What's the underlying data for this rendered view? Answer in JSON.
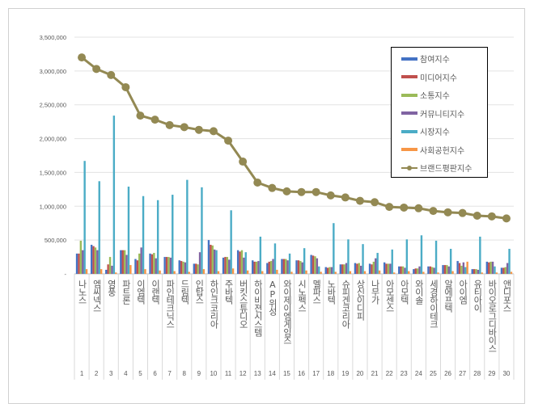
{
  "chart_data": {
    "type": "bar",
    "title": "",
    "xlabel": "",
    "ylabel": "",
    "ylim": [
      0,
      3500000
    ],
    "yticks": [
      "-",
      "500,000",
      "1,000,000",
      "1,500,000",
      "2,000,000",
      "2,500,000",
      "3,000,000",
      "3,500,000"
    ],
    "grid": true,
    "legend_position": "top-right",
    "categories": [
      "나노스",
      "엠씨넥스",
      "영풍",
      "파트론",
      "이엠텍",
      "이랜텍",
      "파인테크닉스",
      "드림텍",
      "인탑스",
      "하인크코리아",
      "주바텍",
      "버킷스튜디오",
      "하이비젼시스템",
      "AP위성",
      "와이제이엠게임즈",
      "시노펙스",
      "멜파스",
      "노바텍",
      "슈피겐코리아",
      "상신이디피",
      "나무가",
      "아모센스",
      "아모텍",
      "와이솔",
      "세경하이테크",
      "알에프텍",
      "아이엠",
      "유티아이",
      "바이오로그디바이스",
      "앤디포스"
    ],
    "ranks": [
      "1",
      "2",
      "3",
      "4",
      "5",
      "6",
      "7",
      "8",
      "9",
      "10",
      "11",
      "12",
      "13",
      "14",
      "15",
      "16",
      "17",
      "18",
      "19",
      "20",
      "21",
      "22",
      "23",
      "24",
      "25",
      "26",
      "27",
      "28",
      "29",
      "30"
    ],
    "series": [
      {
        "name": "참여지수",
        "type": "bar",
        "color": "#4472c4",
        "values": [
          300000,
          430000,
          60000,
          350000,
          220000,
          300000,
          250000,
          200000,
          150000,
          500000,
          240000,
          350000,
          200000,
          160000,
          220000,
          200000,
          280000,
          100000,
          140000,
          160000,
          150000,
          170000,
          110000,
          70000,
          110000,
          130000,
          190000,
          70000,
          180000,
          90000
        ]
      },
      {
        "name": "미디어지수",
        "type": "bar",
        "color": "#c0504d",
        "values": [
          300000,
          410000,
          140000,
          350000,
          200000,
          290000,
          250000,
          190000,
          150000,
          430000,
          250000,
          330000,
          180000,
          180000,
          220000,
          200000,
          270000,
          90000,
          140000,
          150000,
          140000,
          150000,
          110000,
          80000,
          110000,
          130000,
          160000,
          70000,
          170000,
          90000
        ]
      },
      {
        "name": "소통지수",
        "type": "bar",
        "color": "#9bbb59",
        "values": [
          490000,
          390000,
          250000,
          350000,
          300000,
          310000,
          250000,
          180000,
          140000,
          420000,
          250000,
          350000,
          180000,
          190000,
          220000,
          190000,
          260000,
          100000,
          140000,
          160000,
          180000,
          150000,
          110000,
          80000,
          100000,
          130000,
          120000,
          70000,
          180000,
          100000
        ]
      },
      {
        "name": "커뮤니티지수",
        "type": "bar",
        "color": "#8064a2",
        "values": [
          350000,
          350000,
          120000,
          280000,
          390000,
          230000,
          240000,
          170000,
          320000,
          360000,
          210000,
          240000,
          190000,
          220000,
          200000,
          170000,
          230000,
          100000,
          160000,
          120000,
          230000,
          150000,
          90000,
          110000,
          90000,
          110000,
          170000,
          60000,
          180000,
          160000
        ]
      },
      {
        "name": "시장지수",
        "type": "bar",
        "color": "#4bacc6",
        "values": [
          1670000,
          1370000,
          2340000,
          1290000,
          1150000,
          1090000,
          1170000,
          1390000,
          1280000,
          350000,
          940000,
          320000,
          550000,
          450000,
          300000,
          380000,
          110000,
          750000,
          510000,
          440000,
          310000,
          360000,
          510000,
          570000,
          490000,
          370000,
          100000,
          550000,
          110000,
          370000
        ]
      },
      {
        "name": "사회공헌지수",
        "type": "bar",
        "color": "#f79646",
        "values": [
          70000,
          70000,
          20000,
          130000,
          70000,
          50000,
          40000,
          30000,
          70000,
          40000,
          80000,
          50000,
          40000,
          60000,
          30000,
          50000,
          30000,
          30000,
          40000,
          40000,
          50000,
          20000,
          40000,
          30000,
          20000,
          40000,
          180000,
          20000,
          20000,
          30000
        ]
      },
      {
        "name": "브랜드평판지수",
        "type": "line",
        "color": "#938953",
        "values": [
          3200000,
          3030000,
          2940000,
          2760000,
          2340000,
          2280000,
          2200000,
          2170000,
          2130000,
          2110000,
          1970000,
          1660000,
          1350000,
          1270000,
          1220000,
          1210000,
          1210000,
          1160000,
          1130000,
          1080000,
          1060000,
          990000,
          980000,
          970000,
          930000,
          910000,
          900000,
          860000,
          850000,
          820000
        ]
      }
    ]
  }
}
